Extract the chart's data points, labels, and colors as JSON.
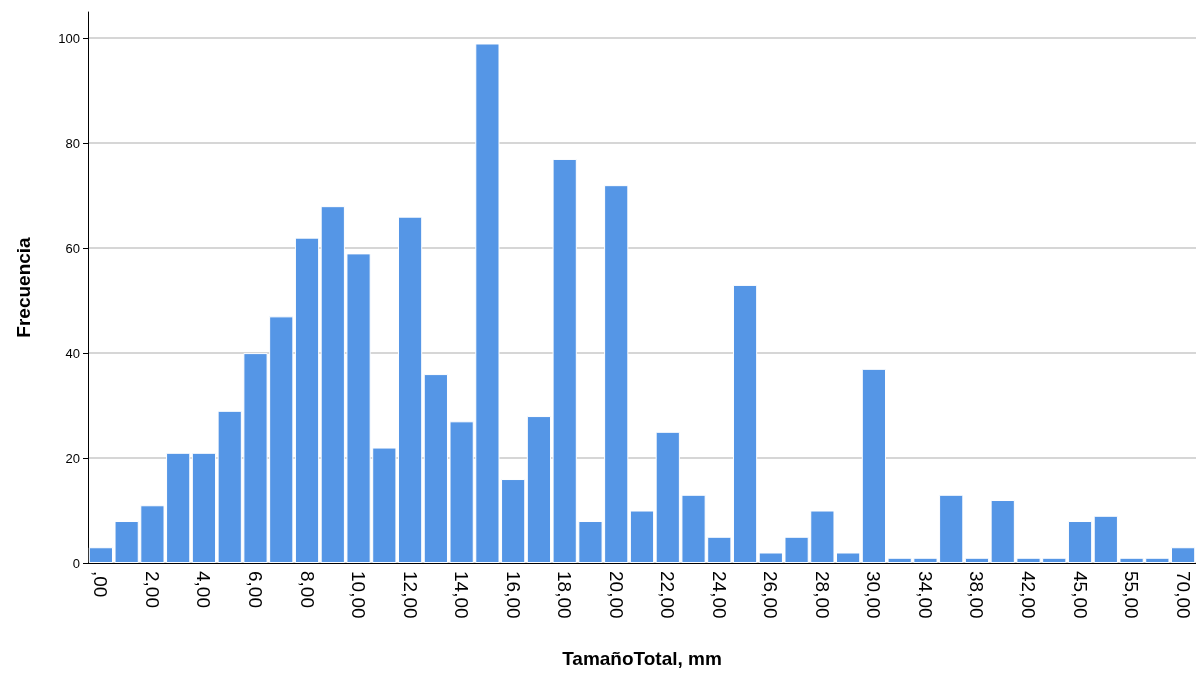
{
  "chart_data": {
    "type": "bar",
    "xlabel": "TamañoTotal, mm",
    "ylabel": "Frecuencia",
    "categories": [
      ",00",
      null,
      "2,00",
      null,
      "4,00",
      null,
      "6,00",
      null,
      "8,00",
      null,
      "10,00",
      null,
      "12,00",
      null,
      "14,00",
      null,
      "16,00",
      null,
      "18,00",
      null,
      "20,00",
      null,
      "22,00",
      null,
      "24,00",
      null,
      "26,00",
      null,
      "28,00",
      null,
      "30,00",
      null,
      "34,00",
      null,
      "38,00",
      null,
      "42,00",
      null,
      "45,00",
      null,
      "55,00",
      null,
      "70,00"
    ],
    "values": [
      3,
      8,
      11,
      21,
      21,
      29,
      40,
      47,
      62,
      68,
      59,
      22,
      66,
      36,
      27,
      99,
      16,
      28,
      77,
      8,
      72,
      10,
      25,
      13,
      5,
      53,
      2,
      5,
      10,
      2,
      37,
      1,
      1,
      13,
      1,
      12,
      1,
      1,
      8,
      9,
      1,
      1,
      3
    ],
    "color": "#5596e6",
    "ylim": [
      0,
      105
    ],
    "yticks": [
      0,
      20,
      40,
      60,
      80,
      100
    ],
    "grid": "y"
  }
}
